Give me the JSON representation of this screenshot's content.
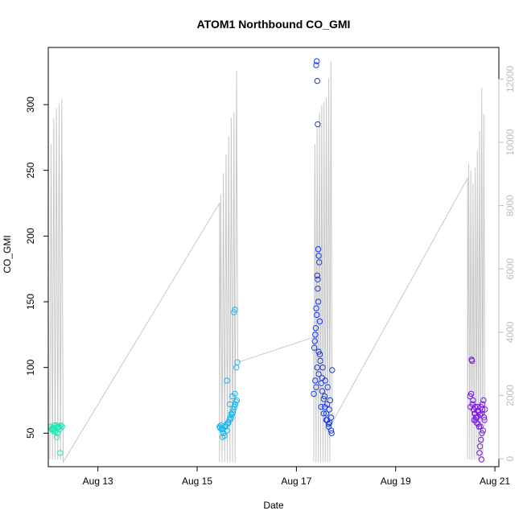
{
  "chart_data": {
    "type": "scatter",
    "title": "ATOM1 Northbound CO_GMI",
    "xlabel": "Date",
    "ylabel": "CO_GMI",
    "x_unit": "days of August",
    "xlim": [
      12.0,
      21.08
    ],
    "ylim": [
      24.5,
      343.5
    ],
    "y2lim": [
      -250,
      13000
    ],
    "x_ticks": [
      {
        "value": 13,
        "label": "Aug 13"
      },
      {
        "value": 15,
        "label": "Aug 15"
      },
      {
        "value": 17,
        "label": "Aug 17"
      },
      {
        "value": 19,
        "label": "Aug 19"
      },
      {
        "value": 21,
        "label": "Aug 21"
      }
    ],
    "y_ticks": [
      50,
      100,
      150,
      200,
      250,
      300
    ],
    "y2_ticks": [
      0,
      2000,
      4000,
      6000,
      8000,
      10000,
      12000
    ],
    "colors": {
      "frame": "#000000",
      "secondary_axis": "#bdbdbd",
      "altitude_trace": "#c8c8c8"
    },
    "series": [
      {
        "color": "#20e8b8",
        "x": [
          12.05,
          12.08,
          12.1,
          12.12,
          12.15,
          12.18,
          12.2,
          12.22,
          12.25,
          12.28,
          12.07,
          12.13,
          12.17,
          12.21,
          12.24,
          12.11,
          12.16,
          12.23,
          12.09,
          12.19
        ],
        "y": [
          55,
          54,
          53,
          56,
          52,
          50,
          54,
          55,
          56,
          55,
          53,
          51,
          47,
          55,
          35,
          54,
          56,
          53,
          52,
          55
        ]
      },
      {
        "color": "#19b8f0",
        "x": [
          15.45,
          15.48,
          15.5,
          15.52,
          15.55,
          15.57,
          15.6,
          15.62,
          15.65,
          15.67,
          15.7,
          15.72,
          15.75,
          15.77,
          15.8,
          15.49,
          15.53,
          15.58,
          15.63,
          15.68,
          15.73,
          15.78,
          15.6,
          15.66,
          15.71,
          15.76,
          15.74,
          15.76,
          15.79,
          15.81,
          15.46,
          15.51,
          15.56,
          15.61,
          15.69
        ],
        "y": [
          55,
          56,
          54,
          53,
          48,
          55,
          52,
          58,
          60,
          62,
          64,
          66,
          70,
          72,
          75,
          53,
          50,
          56,
          58,
          61,
          68,
          74,
          90,
          72,
          78,
          80,
          142,
          144,
          100,
          104,
          54,
          47,
          55,
          57,
          65
        ]
      },
      {
        "color": "#1a3ae8",
        "x": [
          17.35,
          17.38,
          17.4,
          17.42,
          17.45,
          17.47,
          17.5,
          17.52,
          17.55,
          17.57,
          17.6,
          17.62,
          17.65,
          17.67,
          17.7,
          17.72,
          17.4,
          17.41,
          17.42,
          17.43,
          17.44,
          17.45,
          17.46,
          17.42,
          17.43,
          17.44,
          17.4,
          17.41,
          17.39,
          17.38,
          17.37,
          17.36,
          17.48,
          17.53,
          17.58,
          17.63,
          17.68,
          17.5,
          17.55,
          17.6,
          17.65,
          17.7,
          17.45,
          17.52,
          17.57,
          17.62,
          17.66,
          17.71,
          17.43,
          17.47
        ],
        "y": [
          80,
          90,
          85,
          100,
          95,
          110,
          88,
          92,
          76,
          70,
          65,
          60,
          55,
          58,
          62,
          98,
          330,
          333,
          318,
          285,
          190,
          185,
          180,
          170,
          167,
          150,
          145,
          140,
          130,
          125,
          120,
          115,
          105,
          100,
          90,
          85,
          75,
          70,
          65,
          60,
          57,
          52,
          112,
          82,
          78,
          72,
          68,
          50,
          160,
          135
        ]
      },
      {
        "color": "#7a18e8",
        "x": [
          20.5,
          20.52,
          20.55,
          20.57,
          20.6,
          20.62,
          20.65,
          20.67,
          20.7,
          20.72,
          20.75,
          20.77,
          20.8,
          20.53,
          20.54,
          20.58,
          20.63,
          20.68,
          20.73,
          20.78,
          20.6,
          20.65,
          20.7,
          20.75,
          20.56,
          20.61,
          20.66,
          20.71,
          20.76,
          20.74,
          20.72,
          20.7,
          20.69,
          20.73,
          20.51,
          20.59,
          20.64,
          20.79
        ],
        "y": [
          78,
          80,
          72,
          68,
          65,
          62,
          70,
          66,
          64,
          70,
          72,
          75,
          68,
          106,
          105,
          60,
          58,
          55,
          65,
          62,
          70,
          67,
          64,
          68,
          75,
          60,
          57,
          55,
          52,
          50,
          45,
          40,
          35,
          30,
          70,
          65,
          62,
          60
        ]
      }
    ]
  }
}
